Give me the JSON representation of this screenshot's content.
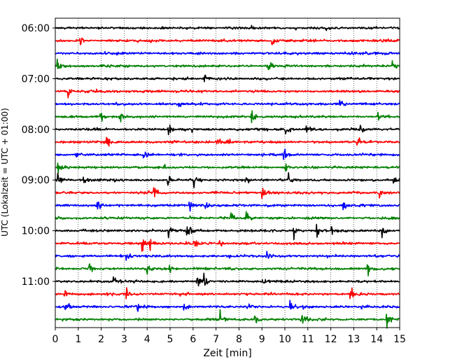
{
  "chart_data": {
    "type": "line",
    "title": "",
    "xlabel": "Zeit  [min]",
    "ylabel": "UTC (Lokalzeit = UTC + 01:00)",
    "xlim": [
      0,
      15
    ],
    "x_ticks": [
      "0",
      "1",
      "2",
      "3",
      "4",
      "5",
      "6",
      "7",
      "8",
      "9",
      "10",
      "11",
      "12",
      "13",
      "14",
      "15"
    ],
    "y_ticks": [
      "06:00",
      "07:00",
      "08:00",
      "09:00",
      "10:00",
      "11:00"
    ],
    "grid_x": "dotted",
    "series_colors": [
      "#000000",
      "#ff0000",
      "#0000ff",
      "#008000"
    ],
    "traces": [
      {
        "start": "06:00",
        "color": "#000000"
      },
      {
        "start": "06:15",
        "color": "#ff0000",
        "events_min": [
          9.45,
          1.1
        ]
      },
      {
        "start": "06:30",
        "color": "#0000ff"
      },
      {
        "start": "06:45",
        "color": "#008000",
        "events_min": [
          0.1,
          9.3,
          14.7
        ]
      },
      {
        "start": "07:00",
        "color": "#000000",
        "events_min": [
          6.5
        ]
      },
      {
        "start": "07:15",
        "color": "#ff0000",
        "events_min": [
          0.55
        ]
      },
      {
        "start": "07:30",
        "color": "#0000ff",
        "events_min": [
          5.4,
          12.4
        ]
      },
      {
        "start": "07:45",
        "color": "#008000",
        "events_min": [
          1.95,
          2.8,
          8.55,
          14.05
        ]
      },
      {
        "start": "08:00",
        "color": "#000000",
        "events_min": [
          4.95,
          10.05,
          10.95,
          13.3
        ]
      },
      {
        "start": "08:15",
        "color": "#ff0000",
        "events_min": [
          2.25,
          7.05,
          7.45,
          13.15
        ]
      },
      {
        "start": "08:30",
        "color": "#0000ff",
        "events_min": [
          0.9,
          3.85,
          9.95
        ]
      },
      {
        "start": "08:45",
        "color": "#008000",
        "events_min": [
          0.1,
          4.75,
          10.05
        ]
      },
      {
        "start": "09:00",
        "color": "#000000",
        "events_min": [
          0.1,
          1.25,
          4.9,
          6.05,
          8.3,
          10.15,
          14.75
        ]
      },
      {
        "start": "09:15",
        "color": "#ff0000",
        "events_min": [
          4.3,
          9.0,
          14.1
        ]
      },
      {
        "start": "09:30",
        "color": "#0000ff",
        "events_min": [
          1.8,
          5.85,
          6.55,
          12.55
        ]
      },
      {
        "start": "09:45",
        "color": "#008000",
        "events_min": [
          7.65,
          8.3
        ]
      },
      {
        "start": "10:00",
        "color": "#000000",
        "events_min": [
          4.95,
          5.75,
          10.4,
          11.4,
          12.05,
          14.25
        ]
      },
      {
        "start": "10:15",
        "color": "#ff0000",
        "events_min": [
          3.8,
          4.1,
          6.05,
          7.1
        ]
      },
      {
        "start": "10:30",
        "color": "#0000ff",
        "events_min": [
          3.1,
          9.2
        ]
      },
      {
        "start": "10:45",
        "color": "#008000",
        "events_min": [
          1.45,
          4.0,
          4.95,
          13.6
        ]
      },
      {
        "start": "11:00",
        "color": "#000000",
        "events_min": [
          2.55,
          6.2,
          6.45,
          9.05
        ]
      },
      {
        "start": "11:15",
        "color": "#ff0000",
        "events_min": [
          0.4,
          3.1,
          12.85
        ]
      },
      {
        "start": "11:30",
        "color": "#0000ff",
        "events_min": [
          0.45,
          3.55,
          5.6,
          8.35,
          10.25,
          13.35
        ]
      },
      {
        "start": "11:45",
        "color": "#008000",
        "events_min": [
          7.2,
          8.7,
          10.75,
          14.45
        ]
      }
    ]
  }
}
